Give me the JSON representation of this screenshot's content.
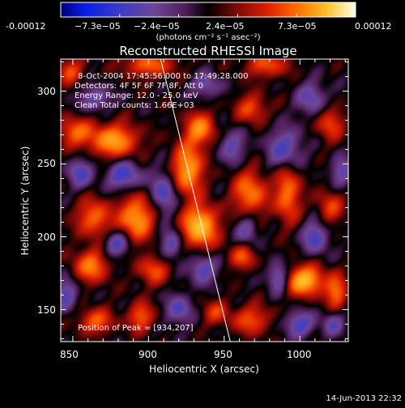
{
  "colorbar": {
    "tick_labels": [
      "-0.00012",
      "−7.3e−05",
      "−2.4e−05",
      "2.4e−05",
      "7.3e−05",
      "0.00012"
    ],
    "unit_label": "(photons cm⁻² s⁻¹ asec⁻²)",
    "range": [
      -0.00012,
      0.00012
    ]
  },
  "chart_data": {
    "type": "heatmap",
    "title": "Reconstructed RHESSI Image",
    "xlabel": "Heliocentric X (arcsec)",
    "ylabel": "Heliocentric Y (arcsec)",
    "xlim": [
      842,
      1032
    ],
    "ylim": [
      128,
      322
    ],
    "xticks": [
      850,
      900,
      950,
      1000
    ],
    "yticks": [
      150,
      200,
      250,
      300
    ],
    "peak": [
      934,
      207
    ],
    "limb_line": [
      [
        908,
        322
      ],
      [
        954,
        128
      ]
    ],
    "blobs": [
      {
        "x": 934,
        "y": 207,
        "v": 1.0,
        "sx": 8,
        "sy": 10
      },
      {
        "x": 926,
        "y": 246,
        "v": 0.85,
        "sx": 7,
        "sy": 12
      },
      {
        "x": 934,
        "y": 274,
        "v": 0.7,
        "sx": 7,
        "sy": 8
      },
      {
        "x": 892,
        "y": 213,
        "v": 0.8,
        "sx": 8,
        "sy": 11
      },
      {
        "x": 877,
        "y": 266,
        "v": 0.8,
        "sx": 11,
        "sy": 8
      },
      {
        "x": 851,
        "y": 272,
        "v": 0.55,
        "sx": 8,
        "sy": 7
      },
      {
        "x": 864,
        "y": 213,
        "v": 0.6,
        "sx": 8,
        "sy": 9
      },
      {
        "x": 862,
        "y": 180,
        "v": 0.65,
        "sx": 8,
        "sy": 8
      },
      {
        "x": 903,
        "y": 177,
        "v": 0.5,
        "sx": 7,
        "sy": 7
      },
      {
        "x": 895,
        "y": 145,
        "v": 0.55,
        "sx": 6,
        "sy": 7
      },
      {
        "x": 865,
        "y": 142,
        "v": 0.55,
        "sx": 8,
        "sy": 6
      },
      {
        "x": 967,
        "y": 230,
        "v": 0.65,
        "sx": 8,
        "sy": 11
      },
      {
        "x": 962,
        "y": 186,
        "v": 0.5,
        "sx": 6,
        "sy": 6
      },
      {
        "x": 968,
        "y": 143,
        "v": 0.5,
        "sx": 9,
        "sy": 7
      },
      {
        "x": 992,
        "y": 230,
        "v": 0.65,
        "sx": 6,
        "sy": 14
      },
      {
        "x": 1003,
        "y": 170,
        "v": 0.95,
        "sx": 9,
        "sy": 7
      },
      {
        "x": 1024,
        "y": 162,
        "v": 0.6,
        "sx": 5,
        "sy": 8
      },
      {
        "x": 1020,
        "y": 220,
        "v": 0.45,
        "sx": 6,
        "sy": 8
      },
      {
        "x": 1020,
        "y": 278,
        "v": 0.5,
        "sx": 6,
        "sy": 8
      },
      {
        "x": 968,
        "y": 288,
        "v": 0.5,
        "sx": 7,
        "sy": 7
      },
      {
        "x": 978,
        "y": 318,
        "v": 0.5,
        "sx": 10,
        "sy": 6
      },
      {
        "x": 900,
        "y": 318,
        "v": 0.55,
        "sx": 12,
        "sy": 6
      },
      {
        "x": 848,
        "y": 314,
        "v": 0.5,
        "sx": 6,
        "sy": 6
      },
      {
        "x": 944,
        "y": 148,
        "v": 0.4,
        "sx": 6,
        "sy": 6
      },
      {
        "x": 990,
        "y": 260,
        "v": -0.55,
        "sx": 8,
        "sy": 10
      },
      {
        "x": 910,
        "y": 230,
        "v": -0.55,
        "sx": 6,
        "sy": 10
      },
      {
        "x": 884,
        "y": 242,
        "v": -0.6,
        "sx": 8,
        "sy": 7
      },
      {
        "x": 955,
        "y": 262,
        "v": -0.45,
        "sx": 6,
        "sy": 8
      },
      {
        "x": 865,
        "y": 295,
        "v": -0.45,
        "sx": 7,
        "sy": 6
      },
      {
        "x": 938,
        "y": 304,
        "v": -0.4,
        "sx": 7,
        "sy": 6
      },
      {
        "x": 855,
        "y": 244,
        "v": -0.5,
        "sx": 6,
        "sy": 7
      },
      {
        "x": 1008,
        "y": 295,
        "v": -0.45,
        "sx": 7,
        "sy": 8
      },
      {
        "x": 1010,
        "y": 200,
        "v": -0.55,
        "sx": 6,
        "sy": 8
      },
      {
        "x": 986,
        "y": 172,
        "v": -0.6,
        "sx": 5,
        "sy": 7
      },
      {
        "x": 936,
        "y": 178,
        "v": -0.55,
        "sx": 6,
        "sy": 7
      },
      {
        "x": 915,
        "y": 195,
        "v": -0.5,
        "sx": 5,
        "sy": 7
      },
      {
        "x": 879,
        "y": 195,
        "v": -0.55,
        "sx": 6,
        "sy": 6
      },
      {
        "x": 920,
        "y": 150,
        "v": -0.5,
        "sx": 6,
        "sy": 7
      },
      {
        "x": 965,
        "y": 205,
        "v": -0.45,
        "sx": 5,
        "sy": 7
      },
      {
        "x": 1000,
        "y": 140,
        "v": -0.55,
        "sx": 7,
        "sy": 6
      },
      {
        "x": 1028,
        "y": 245,
        "v": -0.45,
        "sx": 5,
        "sy": 7
      },
      {
        "x": 846,
        "y": 160,
        "v": -0.5,
        "sx": 5,
        "sy": 8
      },
      {
        "x": 1022,
        "y": 140,
        "v": -0.4,
        "sx": 5,
        "sy": 6
      }
    ]
  },
  "info": {
    "time_line": "8-Oct-2004 17:45:56.000 to 17:49:28.000",
    "detectors_line": "Detectors: 4F 5F 6F 7F 8F, Att 0",
    "energy_line": "Energy Range: 12.0 - 25.0 keV",
    "clean_line": "Clean     Total counts: 1.66E+03",
    "peak_line": "Position of Peak = [934,207]"
  },
  "footer": {
    "date": "14-Jun-2013 22:32"
  }
}
